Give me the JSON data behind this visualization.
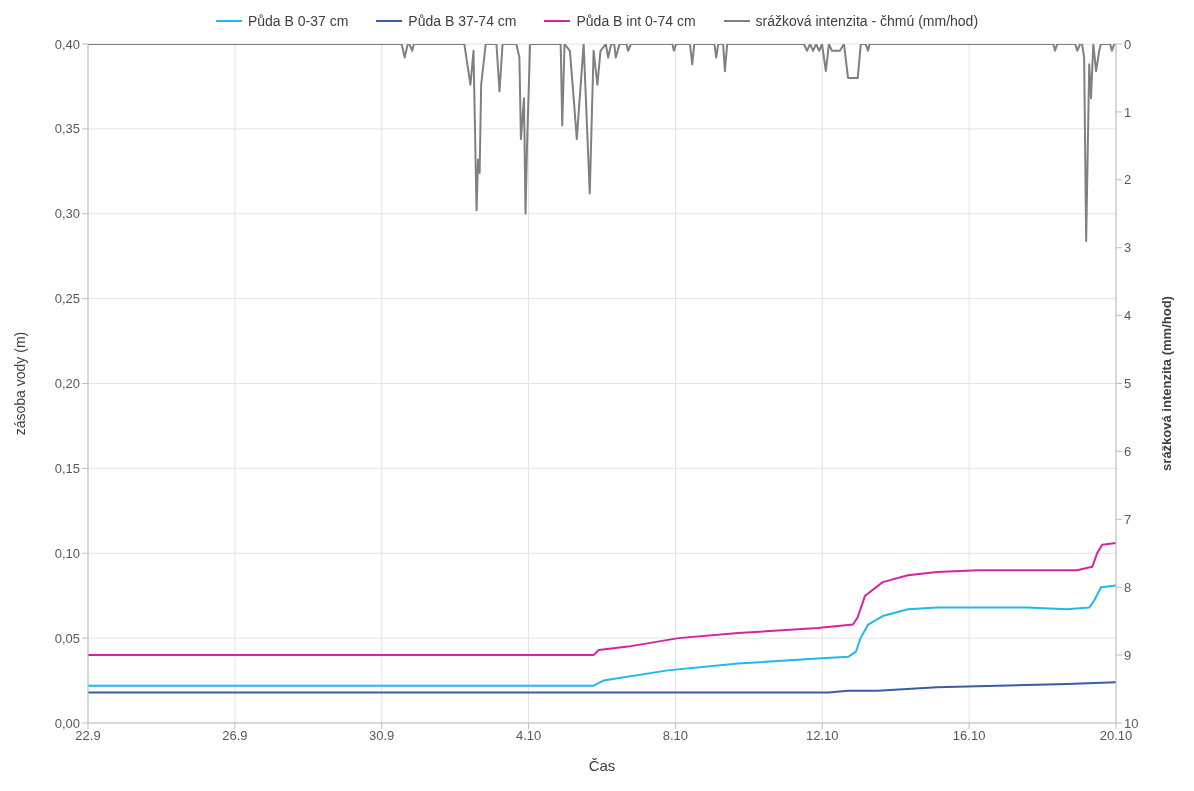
{
  "chart_data": {
    "type": "line",
    "xlabel": "Čas",
    "ylabel": "zásoba vody (m)",
    "y2label": "srážková intenzita (mm/hod)",
    "xlim": [
      "--09-22",
      "--10-20"
    ],
    "xticks": [
      {
        "value": "--09-22",
        "label": "22.9"
      },
      {
        "value": "--09-26",
        "label": "26.9"
      },
      {
        "value": "--09-30",
        "label": "30.9"
      },
      {
        "value": "--10-04",
        "label": "4.10"
      },
      {
        "value": "--10-08",
        "label": "8.10"
      },
      {
        "value": "--10-12",
        "label": "12.10"
      },
      {
        "value": "--10-16",
        "label": "16.10"
      },
      {
        "value": "--10-20",
        "label": "20.10"
      }
    ],
    "ylim": [
      0,
      0.4
    ],
    "yticks": [
      {
        "value": 0,
        "label": "0,00"
      },
      {
        "value": 0.05,
        "label": "0,05"
      },
      {
        "value": 0.1,
        "label": "0,10"
      },
      {
        "value": 0.15,
        "label": "0,15"
      },
      {
        "value": 0.2,
        "label": "0,20"
      },
      {
        "value": 0.25,
        "label": "0,25"
      },
      {
        "value": 0.3,
        "label": "0,30"
      },
      {
        "value": 0.35,
        "label": "0,35"
      },
      {
        "value": 0.4,
        "label": "0,40"
      }
    ],
    "y2lim": [
      10,
      0
    ],
    "y2ticks": [
      0,
      1,
      2,
      3,
      4,
      5,
      6,
      7,
      8,
      9,
      10
    ],
    "grid": true,
    "legend": "top",
    "marker": "none",
    "series": [
      {
        "name": "Půda B 0-37 cm",
        "color": "#1fb8ef",
        "x": [
          "--09-22T00:00",
          "--10-05T18:30",
          "--10-06T01:00",
          "--10-07T19:00",
          "--10-09T17:00",
          "--10-11T21:00",
          "--10-12T17:00",
          "--10-12T22:00",
          "--10-13T01:00",
          "--10-13T06:00",
          "--10-13T15:30",
          "--10-14T08:00",
          "--10-15T03:00",
          "--10-17T14:00",
          "--10-18T16:00",
          "--10-19T06:30",
          "--10-19T09:40",
          "--10-19T14:10",
          "--10-20T00:00"
        ],
        "values": [
          0.022,
          0.022,
          0.025,
          0.031,
          0.035,
          0.038,
          0.039,
          0.042,
          0.05,
          0.058,
          0.063,
          0.067,
          0.068,
          0.068,
          0.067,
          0.068,
          0.072,
          0.08,
          0.081
        ]
      },
      {
        "name": "Půda B 37-74 cm",
        "color": "#3b5ba5",
        "x": [
          "--09-22T00:00",
          "--10-12T04:00",
          "--10-12T17:00",
          "--10-13T12:00",
          "--10-15T03:00",
          "--10-16T18:30",
          "--10-18T16:00",
          "--10-20T00:00"
        ],
        "values": [
          0.018,
          0.018,
          0.019,
          0.019,
          0.021,
          0.022,
          0.023,
          0.024
        ]
      },
      {
        "name": "Půda B int 0-74 cm",
        "color": "#d6249f",
        "x": [
          "--09-22T00:00",
          "--10-05T18:30",
          "--10-05T21:50",
          "--10-06T17:00",
          "--10-08T02:00",
          "--10-09T17:00",
          "--10-11T21:00",
          "--10-12T20:00",
          "--10-12T23:00",
          "--10-13T04:00",
          "--10-13T15:30",
          "--10-14T08:00",
          "--10-15T03:00",
          "--10-16T05:30",
          "--10-18T22:30",
          "--10-19T08:30",
          "--10-19T11:40",
          "--10-19T15:00",
          "--10-20T00:00"
        ],
        "values": [
          0.04,
          0.04,
          0.043,
          0.045,
          0.05,
          0.053,
          0.056,
          0.058,
          0.062,
          0.075,
          0.083,
          0.087,
          0.089,
          0.09,
          0.09,
          0.092,
          0.1,
          0.105,
          0.106
        ]
      },
      {
        "name": "srážková intenzita - čhmú (mm/hod)",
        "color": "#808080",
        "axis": "y2",
        "x": [
          "--09-22T00:00",
          "--09-30T13:00",
          "--09-30T15:00",
          "--09-30T17:00",
          "--09-30T18:00",
          "--09-30T20:00",
          "--09-30T21:00",
          "--10-02T06:00",
          "--10-02T08:00",
          "--10-02T10:00",
          "--10-02T12:00",
          "--10-02T14:00",
          "--10-02T15:00",
          "--10-02T16:00",
          "--10-02T17:00",
          "--10-02T20:00",
          "--10-03T03:00",
          "--10-03T05:00",
          "--10-03T07:00",
          "--10-03T16:00",
          "--10-03T18:00",
          "--10-03T19:00",
          "--10-03T21:00",
          "--10-03T22:00",
          "--10-03T23:00",
          "--10-04T01:00",
          "--10-04T21:00",
          "--10-04T22:00",
          "--10-04T23:30",
          "--10-05T03:00",
          "--10-05T05:30",
          "--10-05T07:30",
          "--10-05T12:00",
          "--10-05T16:00",
          "--10-05T18:30",
          "--10-05T21:00",
          "--10-05T23:00",
          "--10-06T02:30",
          "--10-06T04:00",
          "--10-06T06:00",
          "--10-06T08:00",
          "--10-06T09:00",
          "--10-06T11:30",
          "--10-06T16:00",
          "--10-06T17:00",
          "--10-06T19:00",
          "--10-07T22:00",
          "--10-07T23:00",
          "--10-08T00:30",
          "--10-08T09:30",
          "--10-08T11:00",
          "--10-08T12:20",
          "--10-09T01:30",
          "--10-09T02:40",
          "--10-09T04:00",
          "--10-09T07:10",
          "--10-09T08:20",
          "--10-09T09:50",
          "--10-11T12:00",
          "--10-11T14:00",
          "--10-11T16:00",
          "--10-11T18:00",
          "--10-11T20:00",
          "--10-11T22:00",
          "--10-11T23:50",
          "--10-12T02:20",
          "--10-12T04:20",
          "--10-12T06:20",
          "--10-12T11:30",
          "--10-12T14:10",
          "--10-12T16:50",
          "--10-12T23:10",
          "--10-13T01:10",
          "--10-13T04:20",
          "--10-13T05:50",
          "--10-13T07:00",
          "--10-18T07:00",
          "--10-18T08:10",
          "--10-18T09:30",
          "--10-18T21:20",
          "--10-18T22:40",
          "--10-19T00:30",
          "--10-19T01:50",
          "--10-19T03:10",
          "--10-19T04:30",
          "--10-19T06:30",
          "--10-19T07:40",
          "--10-19T09:10",
          "--10-19T11:00",
          "--10-19T13:00",
          "--10-19T14:10",
          "--10-19T20:10",
          "--10-19T21:20",
          "--10-19T22:50",
          "--10-20T00:00"
        ],
        "values": [
          0,
          0,
          0.2,
          0,
          0,
          0.1,
          0,
          0,
          0.3,
          0.6,
          0.1,
          2.45,
          1.7,
          1.9,
          0.6,
          0,
          0,
          0.7,
          0,
          0,
          0.2,
          1.4,
          0.8,
          2.5,
          1.5,
          0,
          0,
          1.2,
          0,
          0.1,
          0.8,
          1.4,
          0,
          2.2,
          0.1,
          0.6,
          0.1,
          0,
          0.2,
          0,
          0,
          0.2,
          0,
          0,
          0.1,
          0,
          0,
          0.1,
          0,
          0,
          0.3,
          0,
          0,
          0.2,
          0,
          0,
          0.4,
          0,
          0,
          0.1,
          0,
          0.1,
          0,
          0.1,
          0,
          0.4,
          0,
          0.1,
          0.1,
          0,
          0.5,
          0.5,
          0,
          0,
          0.1,
          0,
          0,
          0.1,
          0,
          0,
          0.1,
          0,
          0,
          0.2,
          2.9,
          0.3,
          0.8,
          0,
          0.4,
          0.1,
          0,
          0,
          0.1,
          0,
          0
        ]
      }
    ]
  }
}
